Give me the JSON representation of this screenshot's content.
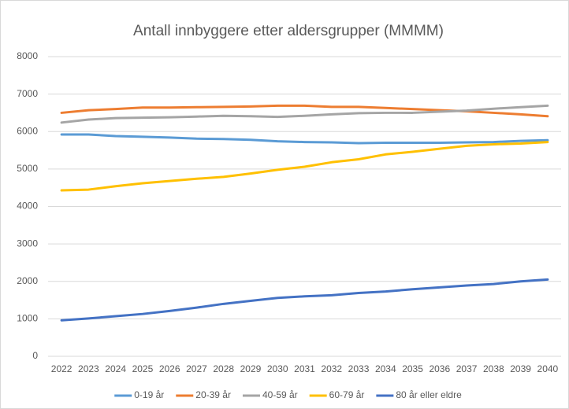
{
  "chart_data": {
    "type": "line",
    "title": "Antall innbyggere etter aldersgrupper (MMMM)",
    "categories": [
      "2022",
      "2023",
      "2024",
      "2025",
      "2026",
      "2027",
      "2028",
      "2029",
      "2030",
      "2031",
      "2032",
      "2033",
      "2034",
      "2035",
      "2036",
      "2037",
      "2038",
      "2039",
      "2040"
    ],
    "series": [
      {
        "name": "0-19 år",
        "color": "#5b9bd5",
        "values": [
          5920,
          5920,
          5880,
          5860,
          5840,
          5810,
          5800,
          5780,
          5740,
          5720,
          5710,
          5690,
          5700,
          5700,
          5700,
          5710,
          5720,
          5750,
          5770
        ]
      },
      {
        "name": "20-39 år",
        "color": "#ed7d31",
        "values": [
          6500,
          6570,
          6600,
          6640,
          6640,
          6650,
          6660,
          6670,
          6690,
          6690,
          6660,
          6660,
          6630,
          6600,
          6570,
          6540,
          6500,
          6460,
          6410
        ]
      },
      {
        "name": "40-59 år",
        "color": "#a5a5a5",
        "values": [
          6240,
          6320,
          6360,
          6370,
          6380,
          6400,
          6420,
          6410,
          6390,
          6420,
          6460,
          6490,
          6500,
          6500,
          6530,
          6560,
          6610,
          6650,
          6690
        ]
      },
      {
        "name": "60-79 år",
        "color": "#ffc000",
        "values": [
          4430,
          4450,
          4540,
          4620,
          4680,
          4740,
          4790,
          4880,
          4980,
          5060,
          5180,
          5260,
          5390,
          5460,
          5540,
          5620,
          5660,
          5680,
          5720
        ]
      },
      {
        "name": "80 år eller eldre",
        "color": "#4472c4",
        "values": [
          960,
          1010,
          1070,
          1130,
          1210,
          1300,
          1400,
          1480,
          1560,
          1600,
          1630,
          1690,
          1730,
          1790,
          1840,
          1890,
          1930,
          2000,
          2050
        ]
      }
    ],
    "ylim": [
      0,
      8000
    ],
    "yticks": [
      0,
      1000,
      2000,
      3000,
      4000,
      5000,
      6000,
      7000,
      8000
    ],
    "grid": true,
    "legend": "bottom"
  }
}
